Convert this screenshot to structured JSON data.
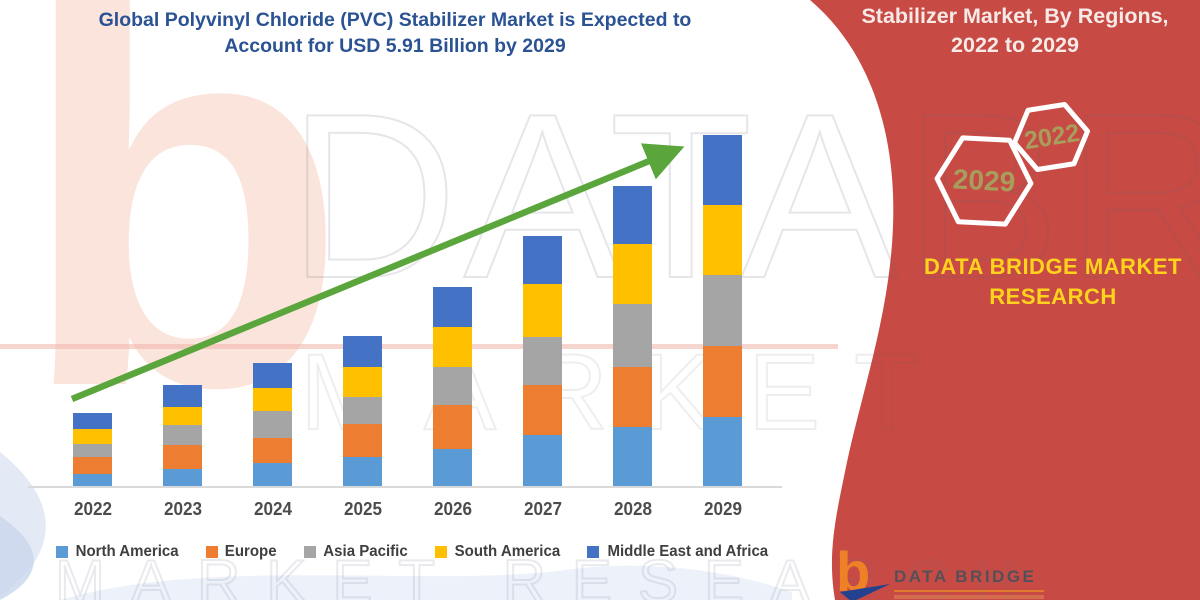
{
  "header": {
    "title_line1": "Global Polyvinyl Chloride (PVC) Stabilizer Market is Expected to",
    "title_line2": "Account for USD 5.91 Billion by 2029"
  },
  "right_panel": {
    "background_color": "#c84a44",
    "heading_line1": "Stabilizer Market, By Regions,",
    "heading_line2": "2022 to 2029",
    "hexagons": [
      {
        "label": "2029"
      },
      {
        "label": "2022"
      }
    ],
    "hexagon_label_color": "#a89e5c",
    "brand_line1": "DATA BRIDGE MARKET",
    "brand_line2": "RESEARCH",
    "brand_text_color": "#ffd31d"
  },
  "logo": {
    "glyph": "b",
    "text": "DATA BRIDGE",
    "accent_color": "#ee8125"
  },
  "watermark": {
    "logo_glyph": "b",
    "row1": "DATABRIDGE",
    "row2": "MARKET",
    "row3": "MARKET RESEARCH"
  },
  "chart_data": {
    "type": "bar",
    "stacked": true,
    "title": "Global Polyvinyl Chloride (PVC) Stabilizer Market is Expected to Account for USD 5.91 Billion by 2029",
    "unit": "USD Billion",
    "categories": [
      "2022",
      "2023",
      "2024",
      "2025",
      "2026",
      "2027",
      "2028",
      "2029"
    ],
    "series": [
      {
        "name": "North America",
        "color": "#5B9BD5",
        "values": [
          0.22,
          0.31,
          0.41,
          0.5,
          0.64,
          0.87,
          1.01,
          1.18
        ]
      },
      {
        "name": "Europe",
        "color": "#ED7D31",
        "values": [
          0.28,
          0.39,
          0.42,
          0.56,
          0.73,
          0.84,
          1.01,
          1.18
        ]
      },
      {
        "name": "Asia Pacific",
        "color": "#A5A5A5",
        "values": [
          0.22,
          0.34,
          0.45,
          0.45,
          0.64,
          0.81,
          1.05,
          1.2
        ]
      },
      {
        "name": "South America",
        "color": "#FFC000",
        "values": [
          0.25,
          0.3,
          0.39,
          0.5,
          0.68,
          0.89,
          1.01,
          1.18
        ]
      },
      {
        "name": "Middle East and Africa",
        "color": "#4472C4",
        "values": [
          0.28,
          0.37,
          0.42,
          0.52,
          0.67,
          0.81,
          0.98,
          1.17
        ]
      }
    ],
    "totals": [
      1.25,
      1.71,
      2.09,
      2.53,
      3.36,
      4.22,
      5.06,
      5.91
    ],
    "ylim": [
      0,
      5.91
    ],
    "grid": false,
    "legend_position": "bottom",
    "trend_arrow": true,
    "trend_arrow_color": "#5aa63c"
  }
}
